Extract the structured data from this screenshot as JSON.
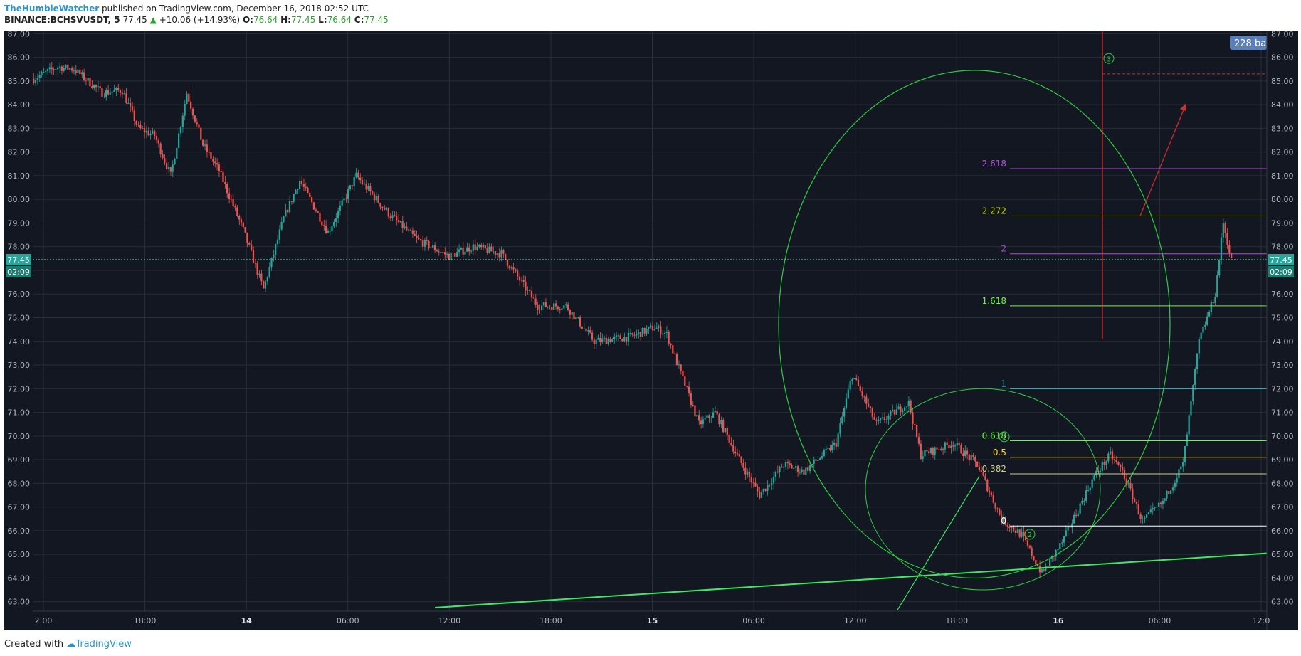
{
  "header": {
    "author": "TheHumbleWatcher",
    "published_text": "published on TradingView.com, December 16, 2018 02:52 UTC",
    "symbol": "BINANCE:BCHSVUSDT, 5",
    "last": "77.45",
    "change_arrow": "▲",
    "change": "+10.06 (+14.93%)",
    "o_label": "O:",
    "o_value": "76.64",
    "h_label": "H:",
    "h_value": "77.45",
    "l_label": "L:",
    "l_value": "76.64",
    "c_label": "C:",
    "c_value": "77.45"
  },
  "footer": {
    "created_with": "Created with",
    "brand": "TradingView"
  },
  "colors": {
    "background": "#131722",
    "up": "#26a69a",
    "down": "#ef5350",
    "grid": "#2a2e39",
    "text": "#b2b5be",
    "ellipse": "#2ecc40",
    "trendline": "#3de864"
  },
  "chart_data": {
    "type": "candlestick",
    "ylim": [
      62.6,
      87.1
    ],
    "yticks": [
      "87.00",
      "86.00",
      "85.00",
      "84.00",
      "83.00",
      "82.00",
      "81.00",
      "80.00",
      "79.00",
      "78.00",
      "77.00",
      "76.00",
      "75.00",
      "74.00",
      "73.00",
      "72.00",
      "71.00",
      "70.00",
      "69.00",
      "68.00",
      "67.00",
      "66.00",
      "65.00",
      "64.00",
      "63.00"
    ],
    "x_tick_labels": [
      "2:00",
      "18:00",
      "14",
      "06:00",
      "12:00",
      "18:00",
      "15",
      "06:00",
      "12:00",
      "18:00",
      "16",
      "06:00",
      "12:0"
    ],
    "x_tick_bold": [
      false,
      false,
      true,
      false,
      false,
      false,
      true,
      false,
      false,
      false,
      true,
      false,
      false
    ],
    "price_path": [
      [
        0,
        85.1
      ],
      [
        12,
        85.6
      ],
      [
        20,
        85.5
      ],
      [
        34,
        84.5
      ],
      [
        44,
        84.6
      ],
      [
        52,
        83.0
      ],
      [
        60,
        82.7
      ],
      [
        68,
        81.0
      ],
      [
        76,
        84.5
      ],
      [
        84,
        82.3
      ],
      [
        92,
        81.2
      ],
      [
        104,
        78.7
      ],
      [
        114,
        76.2
      ],
      [
        124,
        79.2
      ],
      [
        132,
        80.8
      ],
      [
        146,
        78.6
      ],
      [
        160,
        81.0
      ],
      [
        176,
        79.4
      ],
      [
        190,
        78.3
      ],
      [
        206,
        77.6
      ],
      [
        218,
        78.0
      ],
      [
        232,
        77.7
      ],
      [
        250,
        75.5
      ],
      [
        264,
        75.5
      ],
      [
        278,
        74.0
      ],
      [
        296,
        74.2
      ],
      [
        308,
        74.6
      ],
      [
        314,
        74.3
      ],
      [
        330,
        70.5
      ],
      [
        338,
        71.0
      ],
      [
        350,
        69.0
      ],
      [
        360,
        67.5
      ],
      [
        372,
        68.8
      ],
      [
        382,
        68.5
      ],
      [
        398,
        69.7
      ],
      [
        406,
        72.6
      ],
      [
        418,
        70.5
      ],
      [
        434,
        71.4
      ],
      [
        440,
        69.2
      ],
      [
        456,
        69.7
      ],
      [
        468,
        68.8
      ],
      [
        480,
        66.5
      ],
      [
        490,
        65.8
      ],
      [
        500,
        64.2
      ],
      [
        510,
        65.5
      ],
      [
        526,
        68.3
      ],
      [
        534,
        69.2
      ],
      [
        540,
        68.5
      ],
      [
        550,
        66.4
      ],
      [
        560,
        67.2
      ],
      [
        570,
        68.8
      ],
      [
        578,
        74.0
      ],
      [
        586,
        76.0
      ],
      [
        590,
        79.0
      ],
      [
        594,
        77.4
      ]
    ],
    "current_price": "77.45",
    "time_left": "02:09",
    "fib_levels": [
      {
        "label": "0",
        "value": 66.2,
        "color": "#ffffff"
      },
      {
        "label": "0.382",
        "value": 68.4,
        "color": "#cfcf8a"
      },
      {
        "label": "0.5",
        "value": 69.1,
        "color": "#ffd740"
      },
      {
        "label": "0.618",
        "value": 69.8,
        "color": "#66ff33"
      },
      {
        "label": "1",
        "value": 72.0,
        "color": "#4dd0e1"
      },
      {
        "label": "1.618",
        "value": 75.5,
        "color": "#66ff33"
      },
      {
        "label": "2",
        "value": 77.7,
        "color": "#b04fd8"
      },
      {
        "label": "2.272",
        "value": 79.3,
        "color": "#c4d500"
      },
      {
        "label": "2.618",
        "value": 81.3,
        "color": "#b04fd8"
      }
    ],
    "wave_labels": [
      "1",
      "2",
      "3"
    ],
    "bars_badge": "228 ba",
    "red_target": 85.3
  }
}
